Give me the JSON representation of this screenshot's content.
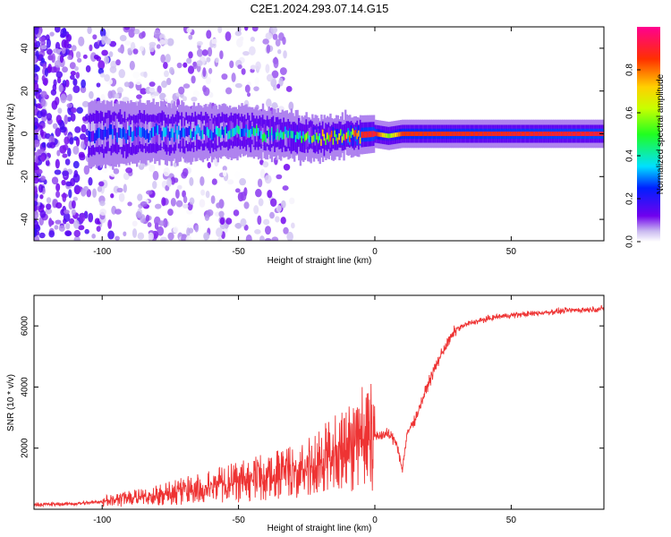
{
  "title": "C2E1.2024.293.07.14.G15",
  "chart_data": [
    {
      "type": "heatmap",
      "xlabel": "Height of straight line (km)",
      "ylabel": "Frequency (Hz)",
      "xlim": [
        -125,
        84
      ],
      "ylim": [
        -50,
        50
      ],
      "xticks": [
        -100,
        -50,
        0,
        50
      ],
      "yticks": [
        -40,
        -20,
        0,
        20,
        40
      ],
      "colorbar": {
        "label": "Normalized spectral amplitude",
        "range": [
          0,
          1
        ],
        "ticks": [
          "0.0",
          "0.2",
          "0.4",
          "0.6",
          "0.8"
        ]
      },
      "band_center_hz": [
        {
          "x": -105,
          "y": 0
        },
        {
          "x": -50,
          "y": 1
        },
        {
          "x": -20,
          "y": -2
        },
        {
          "x": 0,
          "y": 0
        },
        {
          "x": 5,
          "y": -1
        },
        {
          "x": 10,
          "y": 0
        },
        {
          "x": 84,
          "y": 0
        }
      ],
      "peak_amplitude_profile": [
        {
          "x": -125,
          "v": 0.2
        },
        {
          "x": -100,
          "v": 0.25
        },
        {
          "x": -60,
          "v": 0.35
        },
        {
          "x": -30,
          "v": 0.45
        },
        {
          "x": -20,
          "v": 0.6
        },
        {
          "x": -10,
          "v": 0.85
        },
        {
          "x": 0,
          "v": 0.9
        },
        {
          "x": 5,
          "v": 0.55
        },
        {
          "x": 10,
          "v": 0.85
        },
        {
          "x": 84,
          "v": 0.9
        }
      ],
      "grid": false
    },
    {
      "type": "line",
      "xlabel": "Height of straight line (km)",
      "ylabel": "SNR (10 * v/v)",
      "xlim": [
        -125,
        84
      ],
      "ylim": [
        0,
        7000
      ],
      "xticks": [
        -100,
        -50,
        0,
        50
      ],
      "yticks": [
        2000,
        4000,
        6000
      ],
      "series": [
        {
          "color": "#ee3333",
          "x": [
            -125,
            -110,
            -100,
            -90,
            -80,
            -70,
            -60,
            -50,
            -40,
            -30,
            -20,
            -15,
            -10,
            -5,
            0,
            5,
            8,
            10,
            12,
            15,
            20,
            25,
            30,
            35,
            40,
            45,
            50,
            60,
            70,
            84
          ],
          "values": [
            150,
            180,
            250,
            350,
            450,
            600,
            750,
            900,
            1050,
            1200,
            1500,
            1800,
            2100,
            2300,
            2400,
            2450,
            2200,
            1300,
            2500,
            3000,
            4200,
            5200,
            5900,
            6100,
            6200,
            6300,
            6350,
            6420,
            6500,
            6560
          ]
        }
      ],
      "grid": false
    }
  ]
}
